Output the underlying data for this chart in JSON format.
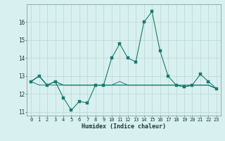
{
  "x": [
    0,
    1,
    2,
    3,
    4,
    5,
    6,
    7,
    8,
    9,
    10,
    11,
    12,
    13,
    14,
    15,
    16,
    17,
    18,
    19,
    20,
    21,
    22,
    23
  ],
  "line1": [
    12.7,
    13.0,
    12.5,
    12.7,
    11.8,
    11.1,
    11.6,
    11.5,
    12.5,
    12.5,
    14.0,
    14.8,
    14.0,
    13.8,
    16.0,
    16.6,
    14.4,
    13.0,
    12.5,
    12.4,
    12.5,
    13.1,
    12.7,
    12.3
  ],
  "line2": [
    12.7,
    13.0,
    12.5,
    12.7,
    12.5,
    12.5,
    12.5,
    12.5,
    12.5,
    12.5,
    12.5,
    12.5,
    12.5,
    12.5,
    12.5,
    12.5,
    12.5,
    12.5,
    12.5,
    12.5,
    12.5,
    12.5,
    12.5,
    12.3
  ],
  "line3": [
    12.7,
    13.0,
    12.5,
    12.7,
    12.5,
    12.5,
    12.5,
    12.5,
    12.5,
    12.5,
    12.5,
    12.7,
    12.5,
    12.5,
    12.5,
    12.5,
    12.5,
    12.5,
    12.5,
    12.4,
    12.5,
    12.5,
    12.5,
    12.3
  ],
  "line4": [
    12.7,
    12.5,
    12.5,
    12.5,
    12.5,
    12.5,
    12.5,
    12.5,
    12.5,
    12.5,
    12.5,
    12.5,
    12.5,
    12.5,
    12.5,
    12.5,
    12.5,
    12.5,
    12.5,
    12.4,
    12.5,
    12.5,
    12.5,
    12.3
  ],
  "line_color": "#1a7a6e",
  "bg_color": "#d8f0ef",
  "grid_color": "#b8d8d5",
  "xlabel": "Humidex (Indice chaleur)",
  "ylim": [
    10.8,
    17.0
  ],
  "xlim": [
    -0.5,
    23.5
  ],
  "yticks": [
    11,
    12,
    13,
    14,
    15,
    16
  ],
  "xticks": [
    0,
    1,
    2,
    3,
    4,
    5,
    6,
    7,
    8,
    9,
    10,
    11,
    12,
    13,
    14,
    15,
    16,
    17,
    18,
    19,
    20,
    21,
    22,
    23
  ],
  "tick_fontsize": 5.0,
  "xlabel_fontsize": 6.0,
  "line_width": 0.8,
  "marker_size": 2.2
}
